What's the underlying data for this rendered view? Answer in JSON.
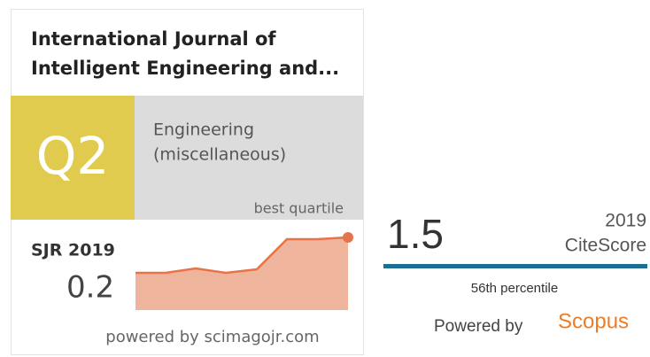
{
  "sjr_widget": {
    "title_line1": "International Journal of",
    "title_line2": "Intelligent Engineering and...",
    "quartile": "Q2",
    "category_line1": "Engineering",
    "category_line2": "(miscellaneous)",
    "quartile_note": "best quartile",
    "metric_label": "SJR 2019",
    "metric_value": "0.2",
    "footer": "powered by scimagojr.com"
  },
  "citescore_widget": {
    "value": "1.5",
    "year": "2019",
    "label": "CiteScore",
    "percentile": "56th percentile",
    "powered_by": "Powered by",
    "brand": "Scopus"
  }
}
